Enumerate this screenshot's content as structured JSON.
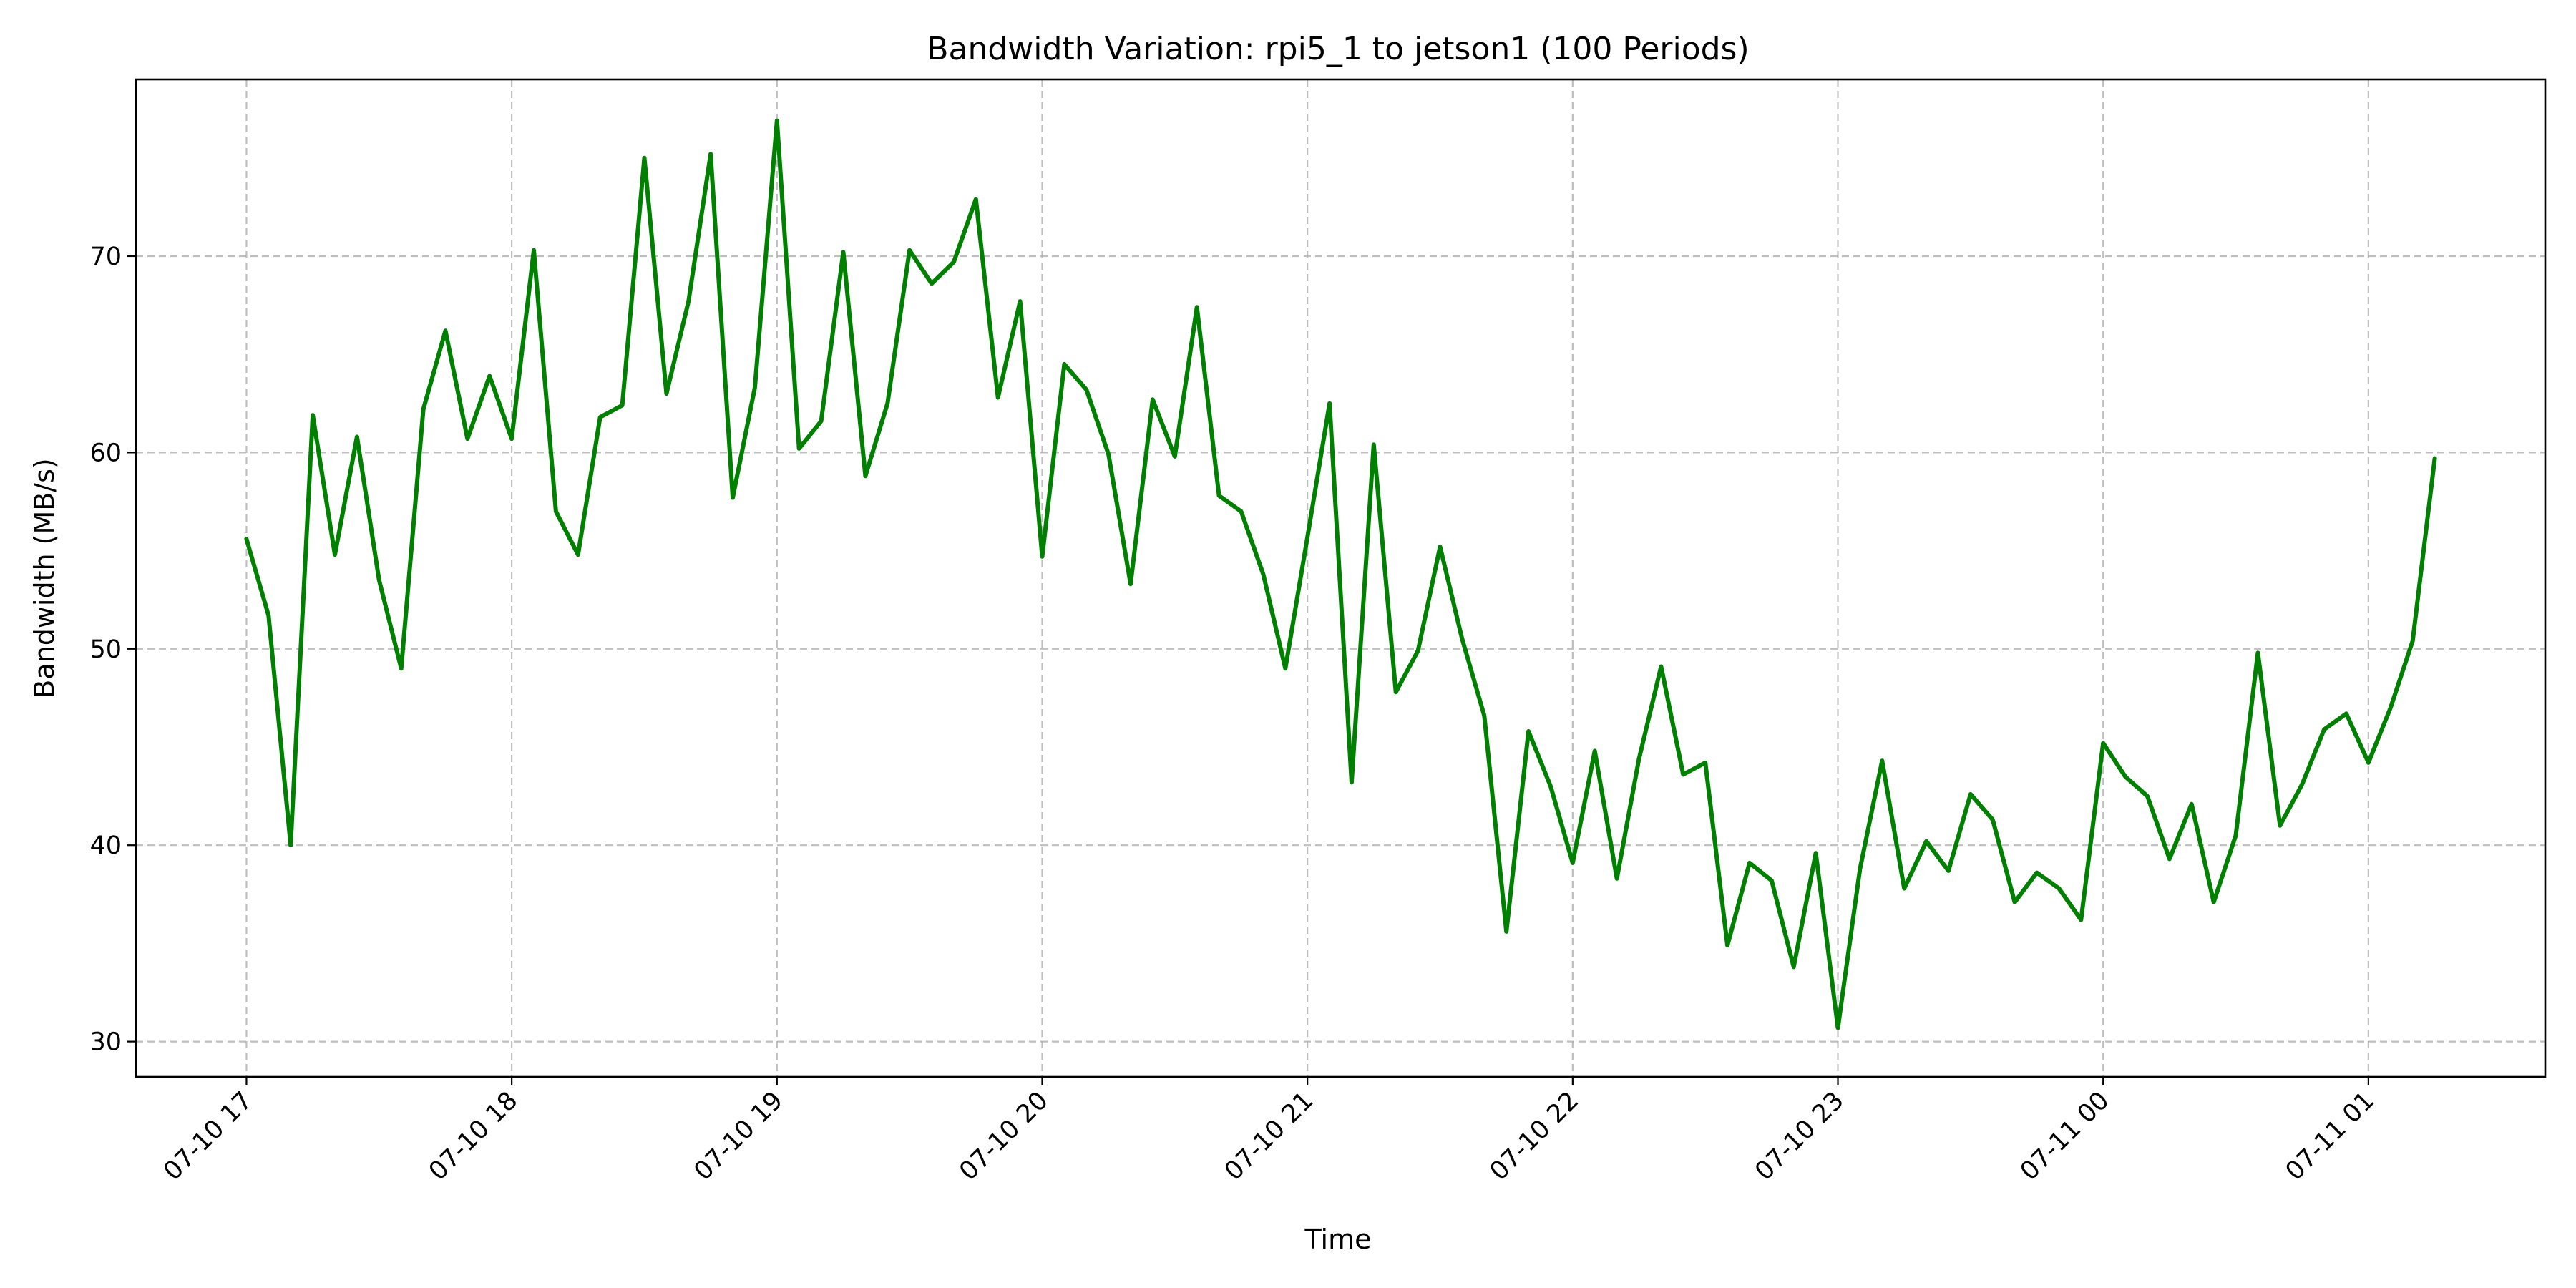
{
  "chart_data": {
    "type": "line",
    "title": "Bandwidth Variation: rpi5_1 to jetson1 (100 Periods)",
    "xlabel": "Time",
    "ylabel": "Bandwidth (MB/s)",
    "ylim": [
      28.2,
      79.0
    ],
    "xlim": [
      "07-10 16:35",
      "07-11 01:40"
    ],
    "grid": true,
    "line_color": "#008000",
    "x_ticks": [
      {
        "label": "07-10 17",
        "value": "07-10 17:00"
      },
      {
        "label": "07-10 18",
        "value": "07-10 18:00"
      },
      {
        "label": "07-10 19",
        "value": "07-10 19:00"
      },
      {
        "label": "07-10 20",
        "value": "07-10 20:00"
      },
      {
        "label": "07-10 21",
        "value": "07-10 21:00"
      },
      {
        "label": "07-10 22",
        "value": "07-10 22:00"
      },
      {
        "label": "07-10 23",
        "value": "07-10 23:00"
      },
      {
        "label": "07-11 00",
        "value": "07-11 00:00"
      },
      {
        "label": "07-11 01",
        "value": "07-11 01:00"
      }
    ],
    "y_ticks": [
      30,
      40,
      50,
      60,
      70
    ],
    "x": [
      "07-10 17:00",
      "07-10 17:05",
      "07-10 17:10",
      "07-10 17:15",
      "07-10 17:20",
      "07-10 17:25",
      "07-10 17:30",
      "07-10 17:35",
      "07-10 17:40",
      "07-10 17:45",
      "07-10 17:50",
      "07-10 17:55",
      "07-10 18:00",
      "07-10 18:05",
      "07-10 18:10",
      "07-10 18:15",
      "07-10 18:20",
      "07-10 18:25",
      "07-10 18:30",
      "07-10 18:35",
      "07-10 18:40",
      "07-10 18:45",
      "07-10 18:50",
      "07-10 18:55",
      "07-10 19:00",
      "07-10 19:05",
      "07-10 19:10",
      "07-10 19:15",
      "07-10 19:20",
      "07-10 19:25",
      "07-10 19:30",
      "07-10 19:35",
      "07-10 19:40",
      "07-10 19:45",
      "07-10 19:50",
      "07-10 19:55",
      "07-10 20:00",
      "07-10 20:05",
      "07-10 20:10",
      "07-10 20:15",
      "07-10 20:20",
      "07-10 20:25",
      "07-10 20:30",
      "07-10 20:35",
      "07-10 20:40",
      "07-10 20:45",
      "07-10 20:50",
      "07-10 20:55",
      "07-10 21:00",
      "07-10 21:05",
      "07-10 21:10",
      "07-10 21:15",
      "07-10 21:20",
      "07-10 21:25",
      "07-10 21:30",
      "07-10 21:35",
      "07-10 21:40",
      "07-10 21:45",
      "07-10 21:50",
      "07-10 21:55",
      "07-10 22:00",
      "07-10 22:05",
      "07-10 22:10",
      "07-10 22:15",
      "07-10 22:20",
      "07-10 22:25",
      "07-10 22:30",
      "07-10 22:35",
      "07-10 22:40",
      "07-10 22:45",
      "07-10 22:50",
      "07-10 22:55",
      "07-10 23:00",
      "07-10 23:05",
      "07-10 23:10",
      "07-10 23:15",
      "07-10 23:20",
      "07-10 23:25",
      "07-10 23:30",
      "07-10 23:35",
      "07-10 23:40",
      "07-10 23:45",
      "07-10 23:50",
      "07-10 23:55",
      "07-11 00:00",
      "07-11 00:05",
      "07-11 00:10",
      "07-11 00:15",
      "07-11 00:20",
      "07-11 00:25",
      "07-11 00:30",
      "07-11 00:35",
      "07-11 00:40",
      "07-11 00:45",
      "07-11 00:50",
      "07-11 00:55",
      "07-11 01:00",
      "07-11 01:05",
      "07-11 01:10",
      "07-11 01:15"
    ],
    "series": [
      {
        "values": [
          55.6,
          51.7,
          40.0,
          61.9,
          54.8,
          60.8,
          53.5,
          49.0,
          62.2,
          66.2,
          60.7,
          63.9,
          60.7,
          70.3,
          57.0,
          54.8,
          61.8,
          62.4,
          75.0,
          63.0,
          67.7,
          75.2,
          57.7,
          63.3,
          76.9,
          60.2,
          61.6,
          70.2,
          58.8,
          62.5,
          70.3,
          68.6,
          69.7,
          72.9,
          62.8,
          67.7,
          54.7,
          64.5,
          63.2,
          59.9,
          53.3,
          62.7,
          59.8,
          67.4,
          57.8,
          57.0,
          53.8,
          49.0,
          55.7,
          62.5,
          43.2,
          60.4,
          47.8,
          49.9,
          55.2,
          50.5,
          46.6,
          35.6,
          45.8,
          43.0,
          39.1,
          44.8,
          38.3,
          44.4,
          49.1,
          43.6,
          44.2,
          34.9,
          39.1,
          38.2,
          33.8,
          39.6,
          30.7,
          38.8,
          44.3,
          37.8,
          40.2,
          38.7,
          42.6,
          41.3,
          37.1,
          38.6,
          37.8,
          36.2,
          45.2,
          43.5,
          42.5,
          39.3,
          42.1,
          37.1,
          40.5,
          49.8,
          41.0,
          43.1,
          45.9,
          46.7,
          44.2,
          47.0,
          50.4,
          59.7
        ]
      }
    ]
  }
}
